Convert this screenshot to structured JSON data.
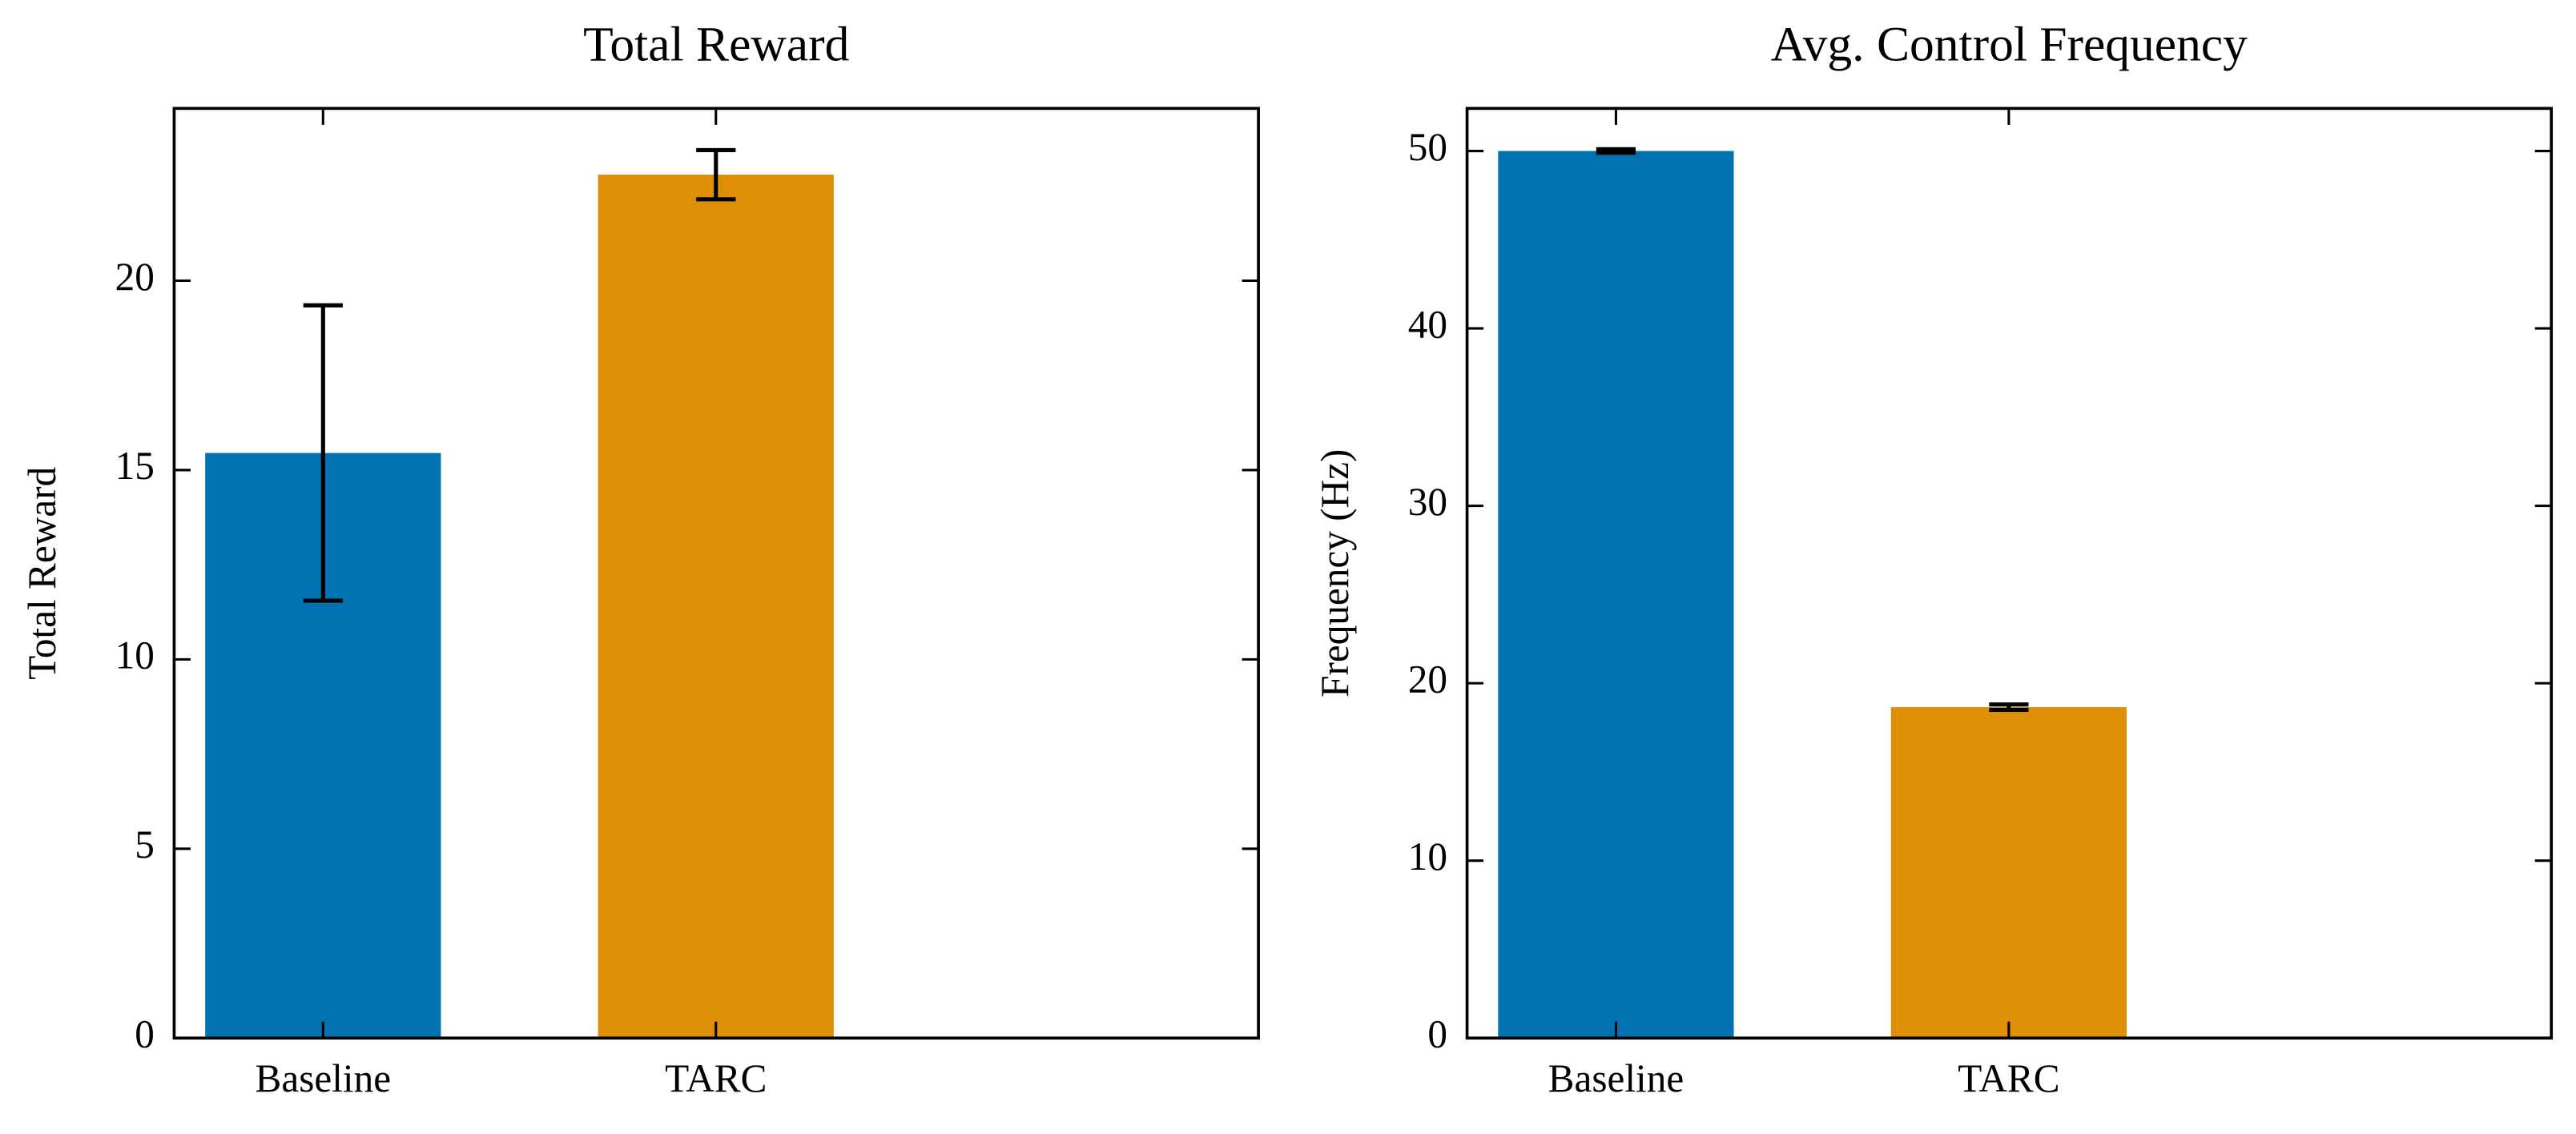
{
  "chart_data": [
    {
      "type": "bar",
      "title": "Total Reward",
      "ylabel": "Total Reward",
      "categories": [
        "Baseline",
        "TARC"
      ],
      "values": [
        15.45,
        22.8
      ],
      "errors": [
        3.9,
        0.65
      ],
      "colors": [
        "#0173b2",
        "#de8f05"
      ],
      "ylim": [
        0,
        24.55
      ],
      "yticks": [
        0,
        5,
        10,
        15,
        20
      ]
    },
    {
      "type": "bar",
      "title": "Avg. Control Frequency",
      "ylabel": "Frequency (Hz)",
      "categories": [
        "Baseline",
        "TARC"
      ],
      "values": [
        50,
        18.65
      ],
      "errors": [
        0.1,
        0.15
      ],
      "colors": [
        "#0173b2",
        "#de8f05"
      ],
      "ylim": [
        0,
        52.4
      ],
      "yticks": [
        0,
        10,
        20,
        30,
        40,
        50
      ]
    }
  ]
}
